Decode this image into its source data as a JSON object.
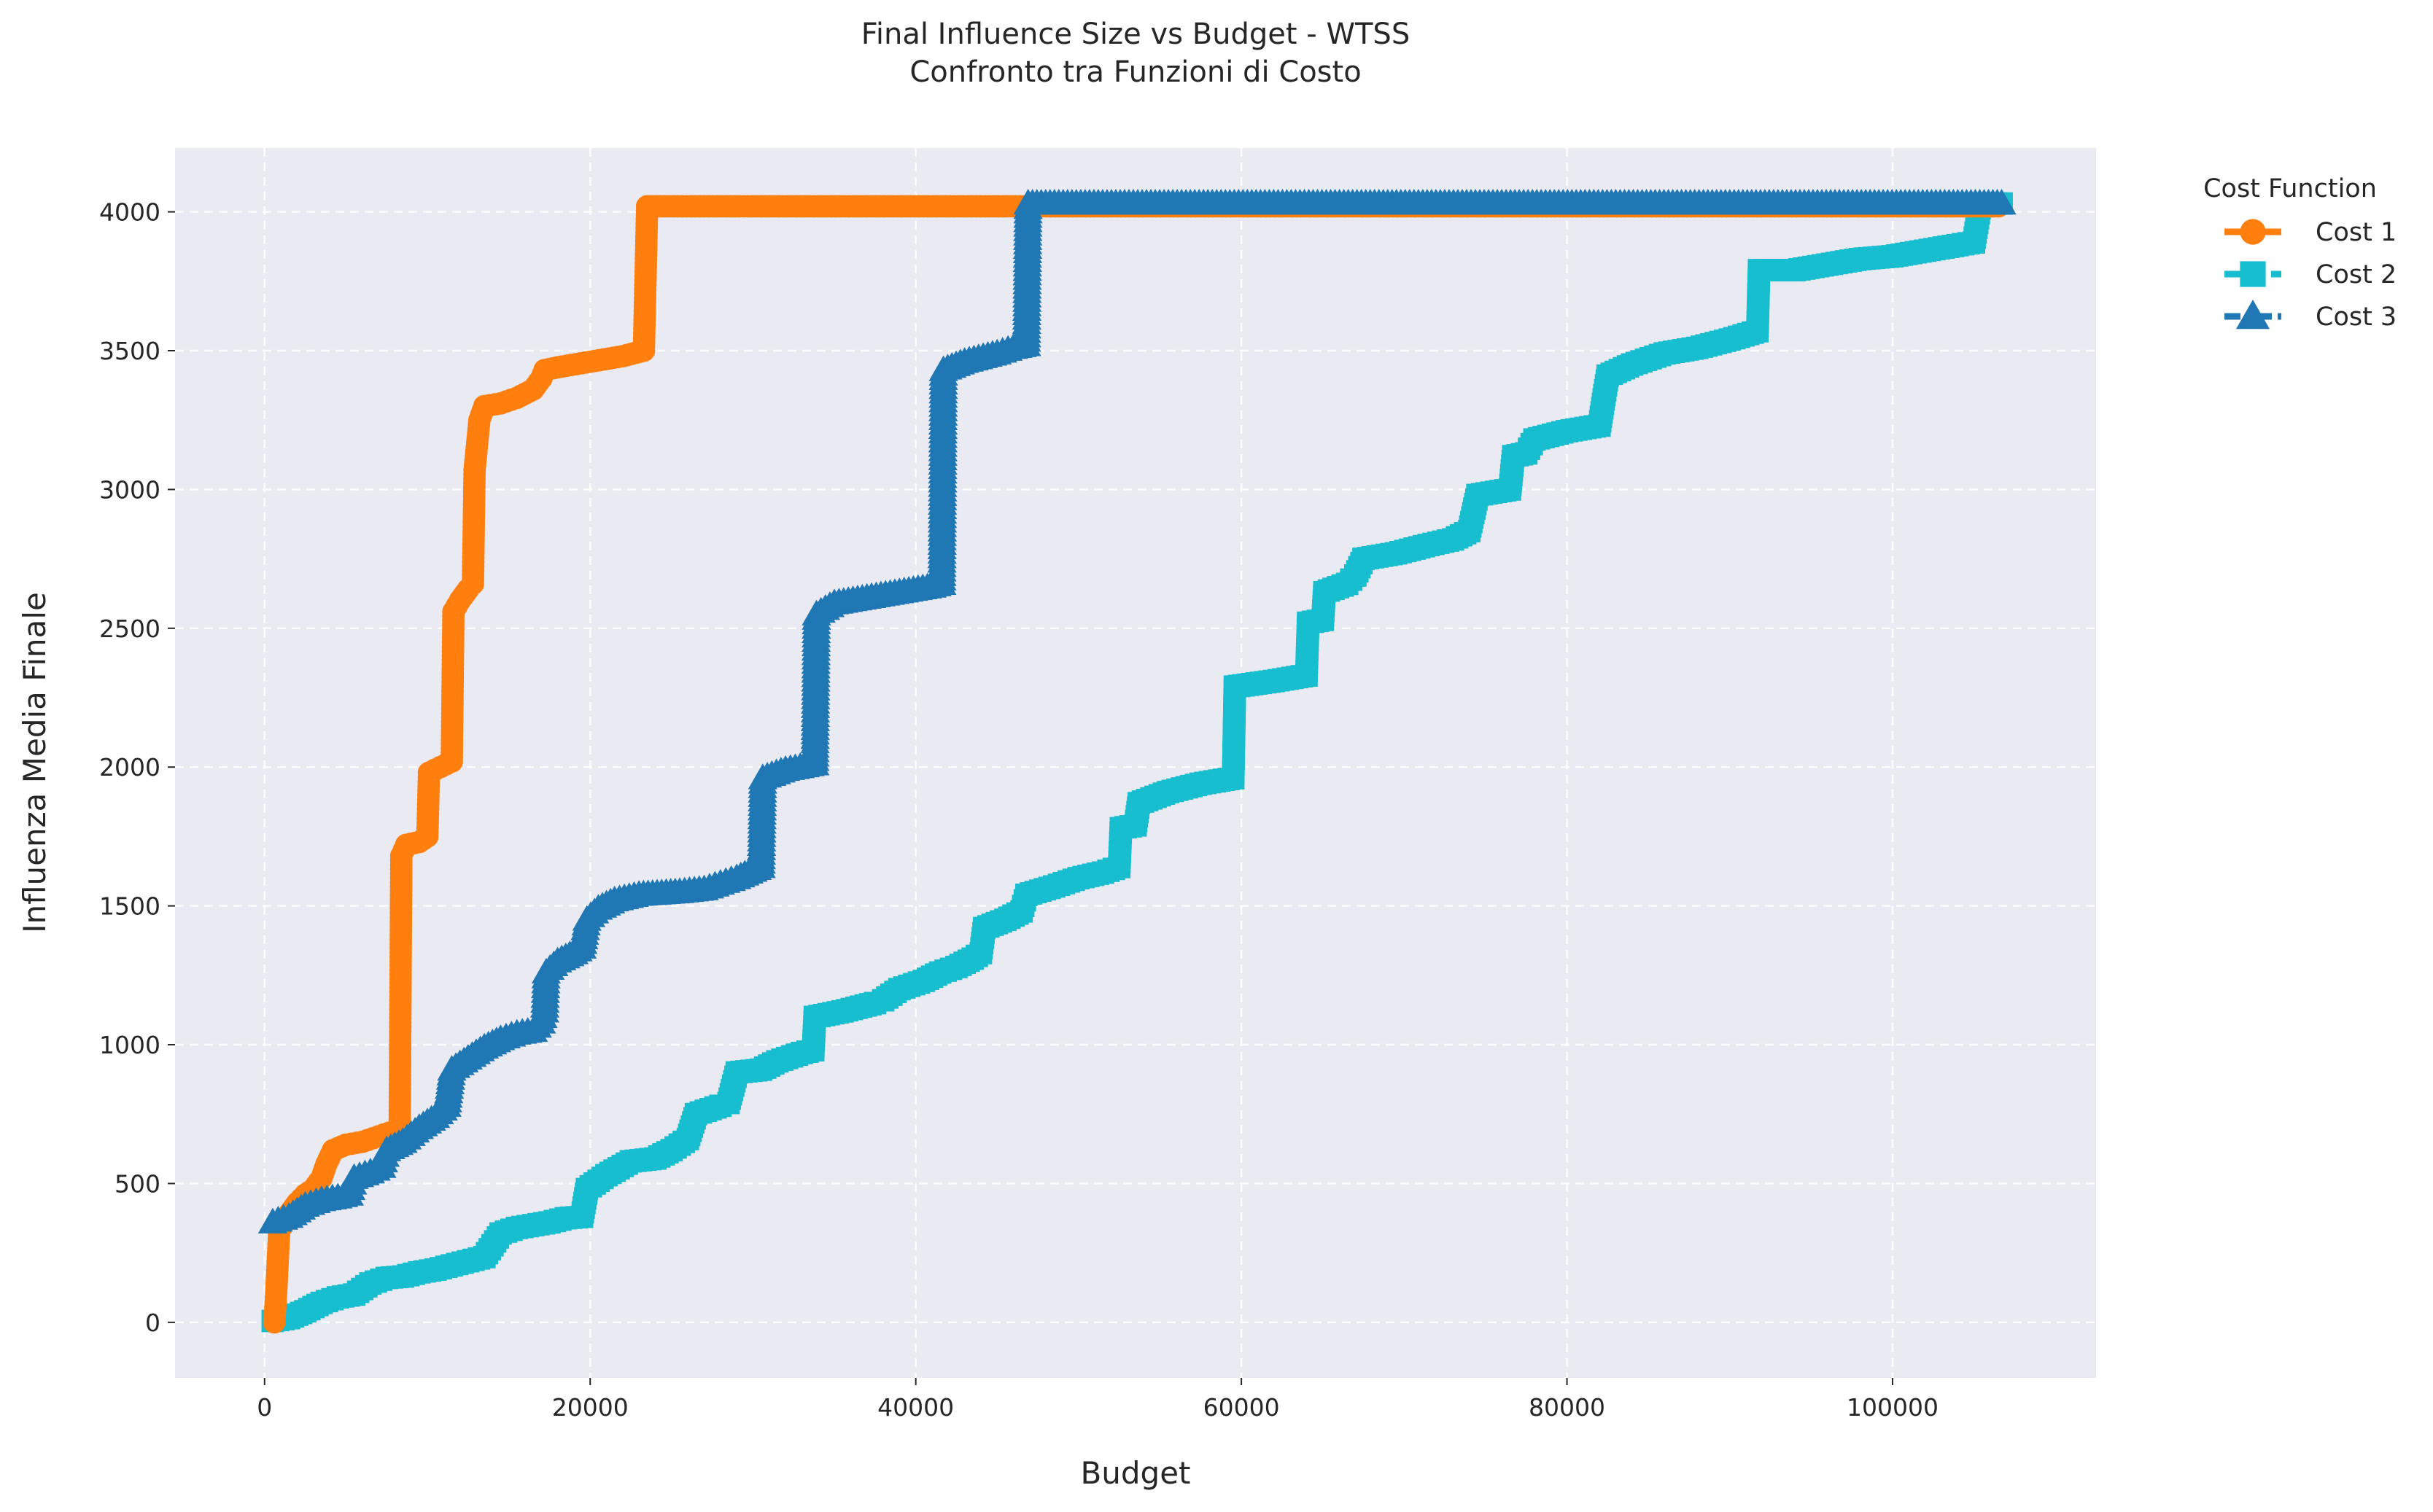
{
  "chart_data": {
    "type": "line",
    "title": "Final Influence Size vs Budget - WTSS",
    "subtitle": "Confronto tra Funzioni di Costo",
    "xlabel": "Budget",
    "ylabel": "Influenza Media Finale",
    "xlim": [
      -5500,
      112500
    ],
    "ylim": [
      -200,
      4230
    ],
    "x_ticks": [
      0,
      20000,
      40000,
      60000,
      80000,
      100000
    ],
    "y_ticks": [
      0,
      500,
      1000,
      1500,
      2000,
      2500,
      3000,
      3500,
      4000
    ],
    "grid": true,
    "background": "#eaeaf2",
    "legend": {
      "title": "Cost Function",
      "placement": "outside-top-right"
    },
    "series": [
      {
        "name": "Cost 1",
        "color": "#ff7f0e",
        "marker": "circle",
        "linestyle": "solid",
        "points": [
          [
            600,
            0
          ],
          [
            700,
            90
          ],
          [
            900,
            330
          ],
          [
            1500,
            390
          ],
          [
            2000,
            430
          ],
          [
            2500,
            460
          ],
          [
            3000,
            480
          ],
          [
            3500,
            520
          ],
          [
            3800,
            570
          ],
          [
            4200,
            620
          ],
          [
            5000,
            640
          ],
          [
            6000,
            650
          ],
          [
            7000,
            670
          ],
          [
            8000,
            690
          ],
          [
            8300,
            700
          ],
          [
            8400,
            1680
          ],
          [
            8700,
            1720
          ],
          [
            9500,
            1730
          ],
          [
            10000,
            1750
          ],
          [
            10100,
            1980
          ],
          [
            10800,
            2000
          ],
          [
            11500,
            2020
          ],
          [
            11600,
            2560
          ],
          [
            12000,
            2600
          ],
          [
            12500,
            2640
          ],
          [
            12800,
            2660
          ],
          [
            12900,
            3070
          ],
          [
            13200,
            3250
          ],
          [
            13500,
            3300
          ],
          [
            14500,
            3310
          ],
          [
            15500,
            3330
          ],
          [
            16500,
            3360
          ],
          [
            17000,
            3400
          ],
          [
            17200,
            3430
          ],
          [
            18000,
            3440
          ],
          [
            20000,
            3460
          ],
          [
            22000,
            3480
          ],
          [
            23300,
            3500
          ],
          [
            23500,
            4020
          ],
          [
            106500,
            4020
          ]
        ]
      },
      {
        "name": "Cost 2",
        "color": "#17becf",
        "marker": "square",
        "linestyle": "dashed",
        "points": [
          [
            500,
            5
          ],
          [
            1500,
            15
          ],
          [
            2500,
            40
          ],
          [
            3500,
            70
          ],
          [
            4500,
            90
          ],
          [
            5500,
            100
          ],
          [
            6500,
            140
          ],
          [
            7500,
            160
          ],
          [
            8500,
            165
          ],
          [
            9500,
            180
          ],
          [
            10500,
            190
          ],
          [
            11500,
            205
          ],
          [
            12500,
            220
          ],
          [
            13500,
            235
          ],
          [
            14500,
            320
          ],
          [
            15500,
            340
          ],
          [
            16500,
            350
          ],
          [
            17500,
            360
          ],
          [
            18500,
            375
          ],
          [
            19500,
            380
          ],
          [
            19800,
            480
          ],
          [
            21000,
            530
          ],
          [
            22500,
            580
          ],
          [
            24000,
            590
          ],
          [
            25000,
            620
          ],
          [
            26000,
            660
          ],
          [
            26500,
            750
          ],
          [
            28000,
            780
          ],
          [
            28500,
            790
          ],
          [
            29000,
            900
          ],
          [
            30500,
            910
          ],
          [
            31500,
            940
          ],
          [
            33000,
            970
          ],
          [
            33700,
            980
          ],
          [
            33800,
            1100
          ],
          [
            35500,
            1120
          ],
          [
            37500,
            1150
          ],
          [
            38000,
            1160
          ],
          [
            39000,
            1200
          ],
          [
            40500,
            1230
          ],
          [
            41500,
            1260
          ],
          [
            42500,
            1280
          ],
          [
            43500,
            1310
          ],
          [
            44000,
            1330
          ],
          [
            44200,
            1420
          ],
          [
            45500,
            1450
          ],
          [
            46500,
            1480
          ],
          [
            46800,
            1540
          ],
          [
            48500,
            1570
          ],
          [
            50000,
            1600
          ],
          [
            51500,
            1620
          ],
          [
            52500,
            1640
          ],
          [
            52600,
            1780
          ],
          [
            53500,
            1790
          ],
          [
            53700,
            1870
          ],
          [
            55500,
            1910
          ],
          [
            57500,
            1940
          ],
          [
            59500,
            1960
          ],
          [
            59600,
            2290
          ],
          [
            62000,
            2310
          ],
          [
            64000,
            2330
          ],
          [
            64100,
            2520
          ],
          [
            65000,
            2530
          ],
          [
            65100,
            2630
          ],
          [
            66500,
            2660
          ],
          [
            67000,
            2690
          ],
          [
            67500,
            2750
          ],
          [
            69500,
            2770
          ],
          [
            71500,
            2800
          ],
          [
            73000,
            2820
          ],
          [
            74000,
            2850
          ],
          [
            74500,
            2980
          ],
          [
            76500,
            3000
          ],
          [
            76700,
            3120
          ],
          [
            77500,
            3130
          ],
          [
            78000,
            3180
          ],
          [
            80000,
            3210
          ],
          [
            82000,
            3230
          ],
          [
            82300,
            3340
          ],
          [
            82500,
            3410
          ],
          [
            84000,
            3450
          ],
          [
            86000,
            3490
          ],
          [
            88000,
            3510
          ],
          [
            90000,
            3540
          ],
          [
            91700,
            3570
          ],
          [
            91800,
            3790
          ],
          [
            94000,
            3790
          ],
          [
            96000,
            3810
          ],
          [
            98000,
            3830
          ],
          [
            100000,
            3840
          ],
          [
            102000,
            3860
          ],
          [
            104000,
            3880
          ],
          [
            105000,
            3890
          ],
          [
            105200,
            3960
          ],
          [
            105400,
            4030
          ],
          [
            106700,
            4030
          ]
        ]
      },
      {
        "name": "Cost 3",
        "color": "#1f77b4",
        "marker": "triangle",
        "linestyle": "dashdot",
        "points": [
          [
            500,
            360
          ],
          [
            1500,
            380
          ],
          [
            2500,
            420
          ],
          [
            3500,
            440
          ],
          [
            4500,
            450
          ],
          [
            5200,
            460
          ],
          [
            5500,
            520
          ],
          [
            6500,
            540
          ],
          [
            7200,
            560
          ],
          [
            7500,
            620
          ],
          [
            8500,
            650
          ],
          [
            9500,
            700
          ],
          [
            10500,
            740
          ],
          [
            11200,
            780
          ],
          [
            11500,
            910
          ],
          [
            12500,
            950
          ],
          [
            13500,
            990
          ],
          [
            14500,
            1020
          ],
          [
            15500,
            1040
          ],
          [
            16500,
            1050
          ],
          [
            17000,
            1080
          ],
          [
            17200,
            1120
          ],
          [
            17300,
            1260
          ],
          [
            18000,
            1300
          ],
          [
            19000,
            1330
          ],
          [
            19500,
            1350
          ],
          [
            19800,
            1450
          ],
          [
            20500,
            1490
          ],
          [
            21500,
            1520
          ],
          [
            23000,
            1540
          ],
          [
            25500,
            1550
          ],
          [
            27000,
            1560
          ],
          [
            28000,
            1580
          ],
          [
            29000,
            1600
          ],
          [
            30500,
            1640
          ],
          [
            30600,
            1960
          ],
          [
            32000,
            1990
          ],
          [
            33800,
            2010
          ],
          [
            33900,
            2550
          ],
          [
            35000,
            2590
          ],
          [
            37000,
            2610
          ],
          [
            39000,
            2630
          ],
          [
            41000,
            2650
          ],
          [
            41600,
            2660
          ],
          [
            41700,
            3430
          ],
          [
            43000,
            3460
          ],
          [
            45000,
            3490
          ],
          [
            46000,
            3510
          ],
          [
            46800,
            3520
          ],
          [
            46900,
            4030
          ],
          [
            106700,
            4030
          ]
        ]
      }
    ]
  }
}
